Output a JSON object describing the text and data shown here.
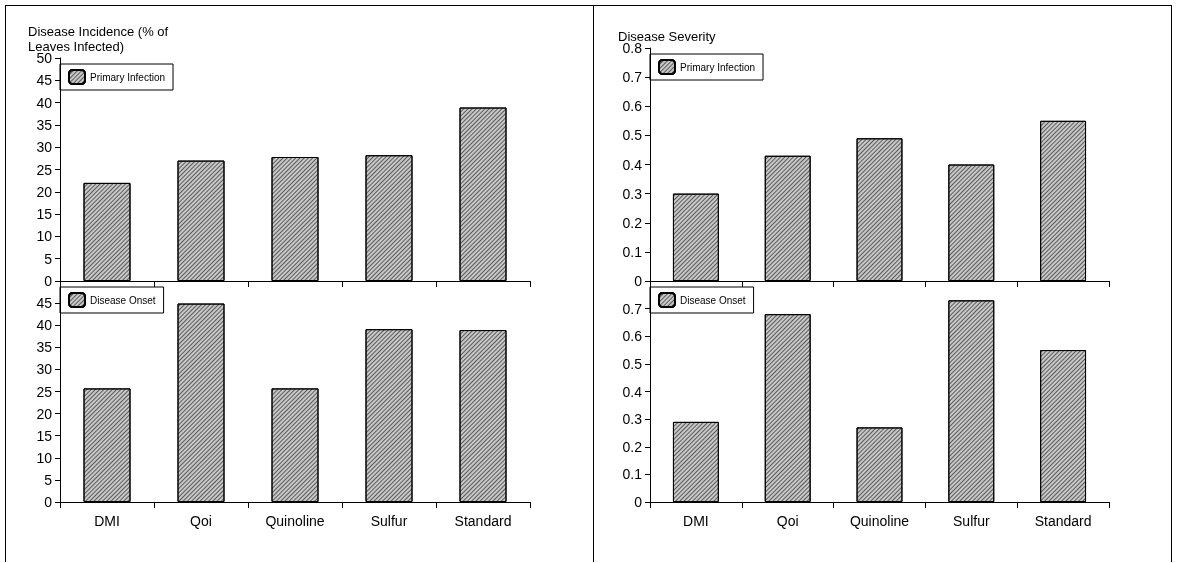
{
  "chart_data": [
    {
      "type": "bar",
      "ylabel": "Disease Incidence (% of Leaves Infected)",
      "categories": [
        null,
        null,
        null,
        null,
        null
      ],
      "series": [
        {
          "name": "Primary Infection",
          "color": "#c8c8c8",
          "values": [
            22,
            27,
            27.8,
            28.2,
            38.9
          ]
        }
      ],
      "ylim": [
        0,
        50
      ],
      "yticks": [
        0,
        5,
        10,
        15,
        20,
        25,
        30,
        35,
        40,
        45,
        50
      ],
      "legend": "top left",
      "tick_labels": "y"
    },
    {
      "type": "bar",
      "ylabel": "Disease Severity",
      "categories": [
        null,
        null,
        null,
        null,
        null
      ],
      "series": [
        {
          "name": "Primary Infection",
          "color": "#c8c8c8",
          "values": [
            0.3,
            0.43,
            0.49,
            0.4,
            0.55
          ]
        }
      ],
      "ylim": [
        0,
        0.8
      ],
      "yticks": [
        0,
        0.1,
        0.2,
        0.3,
        0.4,
        0.5,
        0.6,
        0.7,
        0.8
      ],
      "legend": "top left",
      "tick_labels": "y"
    },
    {
      "type": "bar",
      "categories": [
        "DMI",
        "Qoi",
        "Quinoline",
        "Sulfur",
        "Standard"
      ],
      "series": [
        {
          "name": "Disease Onset",
          "color": "#c8c8c8",
          "values": [
            25.7,
            44.9,
            25.7,
            39.1,
            38.9
          ]
        }
      ],
      "ylim": [
        0,
        50
      ],
      "yticks": [
        0,
        5,
        10,
        15,
        20,
        25,
        30,
        35,
        40,
        45
      ],
      "legend": "top left"
    },
    {
      "type": "bar",
      "categories": [
        "DMI",
        "Qoi",
        "Quinoline",
        "Sulfur",
        "Standard"
      ],
      "series": [
        {
          "name": "Disease Onset",
          "color": "#c8c8c8",
          "values": [
            0.29,
            0.68,
            0.27,
            0.73,
            0.55
          ]
        }
      ],
      "ylim": [
        0,
        0.8
      ],
      "yticks": [
        0,
        0.1,
        0.2,
        0.3,
        0.4,
        0.5,
        0.6,
        0.7
      ],
      "legend": "top left"
    }
  ]
}
